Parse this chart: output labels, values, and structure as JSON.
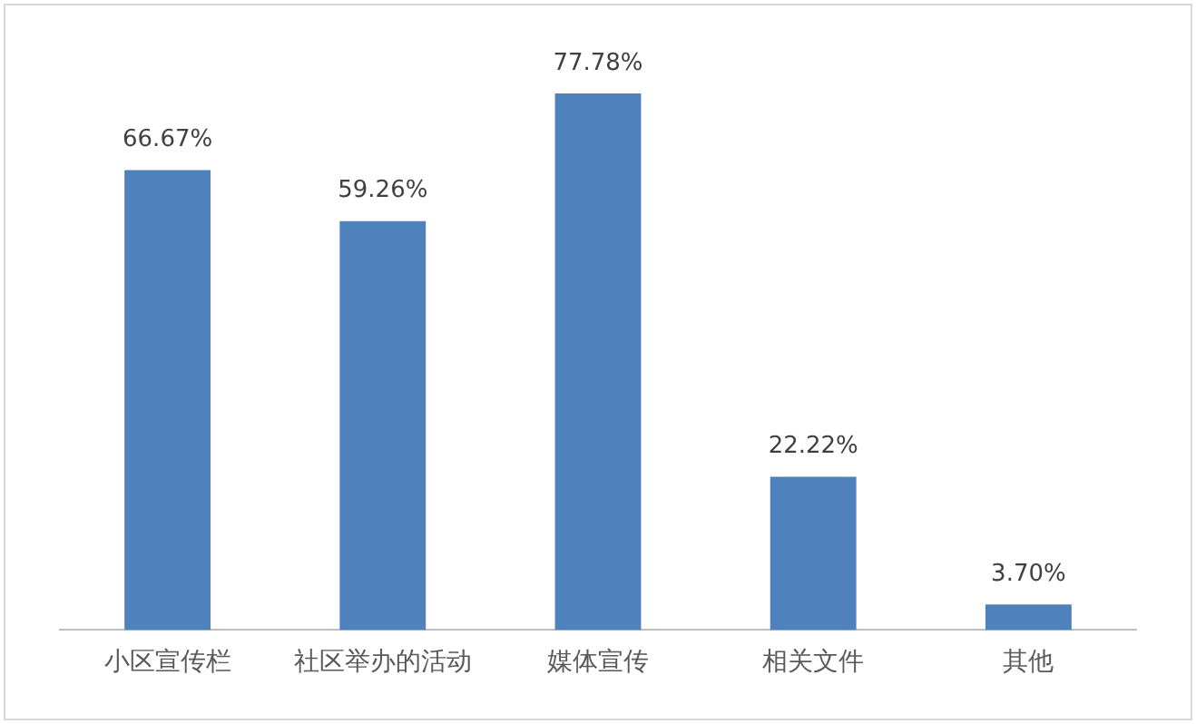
{
  "chart_data": {
    "type": "bar",
    "categories": [
      "小区宣传栏",
      "社区举办的活动",
      "媒体宣传",
      "相关文件",
      "其他"
    ],
    "values": [
      66.67,
      59.26,
      77.78,
      22.22,
      3.7
    ],
    "value_labels": [
      "66.67%",
      "59.26%",
      "77.78%",
      "22.22%",
      "3.70%"
    ],
    "color": "#4f81bd",
    "grid": false,
    "legend": false
  }
}
